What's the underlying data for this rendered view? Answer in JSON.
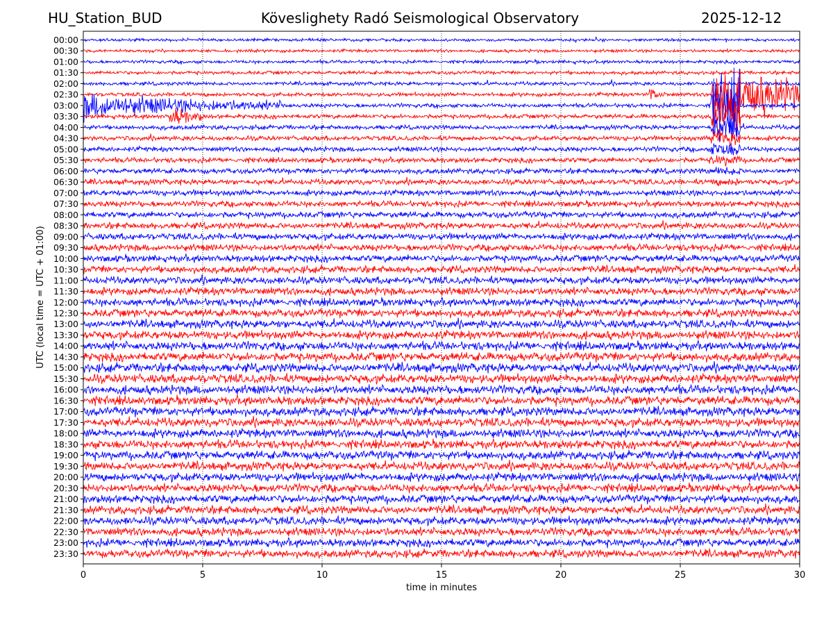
{
  "header": {
    "station": "HU_Station_BUD",
    "title": "Köveslighety Radó Seismological Observatory",
    "date": "2025-12-12"
  },
  "chart_data": {
    "type": "line",
    "subtype": "helicorder",
    "title": "Köveslighety Radó Seismological Observatory",
    "xlabel": "time in minutes",
    "ylabel": "UTC (local time = UTC + 01:00)",
    "xlim": [
      0,
      30
    ],
    "xticks": [
      0,
      5,
      10,
      15,
      20,
      25,
      30
    ],
    "xtick_labels": [
      "0",
      "5",
      "10",
      "15",
      "20",
      "25",
      "30"
    ],
    "vertical_gridlines_at": [
      5,
      10,
      15,
      20,
      25
    ],
    "row_interval_minutes": 30,
    "trace_colors": [
      "#0000ff",
      "#ff0000"
    ],
    "rows": [
      "00:00",
      "00:30",
      "01:00",
      "01:30",
      "02:00",
      "02:30",
      "03:00",
      "03:30",
      "04:00",
      "04:30",
      "05:00",
      "05:30",
      "06:00",
      "06:30",
      "07:00",
      "07:30",
      "08:00",
      "08:30",
      "09:00",
      "09:30",
      "10:00",
      "10:30",
      "11:00",
      "11:30",
      "12:00",
      "12:30",
      "13:00",
      "13:30",
      "14:00",
      "14:30",
      "15:00",
      "15:30",
      "16:00",
      "16:30",
      "17:00",
      "17:30",
      "18:00",
      "18:30",
      "19:00",
      "19:30",
      "20:00",
      "20:30",
      "21:00",
      "21:30",
      "22:00",
      "22:30",
      "23:00",
      "23:30"
    ],
    "events": [
      {
        "row": "02:30",
        "start_min": 26.3,
        "end_min": 30,
        "description": "large earthquake arrival, clipped amplitude extending to later rows"
      },
      {
        "row": "03:00",
        "start_min": 0,
        "end_min": 8.5,
        "description": "earthquake coda"
      },
      {
        "row": "03:30",
        "start_min": 3.6,
        "end_min": 5.0,
        "description": "local event"
      },
      {
        "row": "02:30",
        "start_min": 23.7,
        "end_min": 24.4,
        "description": "small event"
      }
    ]
  }
}
